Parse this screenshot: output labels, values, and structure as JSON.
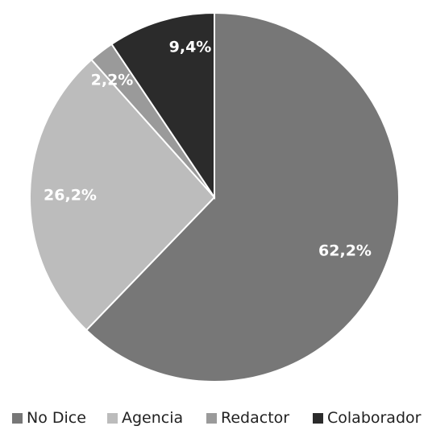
{
  "chart_data": {
    "type": "pie",
    "title": "",
    "start_angle_deg": 0,
    "direction": "clockwise",
    "legend_position": "bottom",
    "slices": [
      {
        "name": "No Dice",
        "value": 62.2,
        "label": "62,2%",
        "color": "#777777"
      },
      {
        "name": "Agencia",
        "value": 26.2,
        "label": "26,2%",
        "color": "#bcbcbc"
      },
      {
        "name": "Redactor",
        "value": 2.2,
        "label": "2,2%",
        "color": "#9a9a9a"
      },
      {
        "name": "Colaborador",
        "value": 9.4,
        "label": "9,4%",
        "color": "#2b2b2b"
      }
    ]
  }
}
